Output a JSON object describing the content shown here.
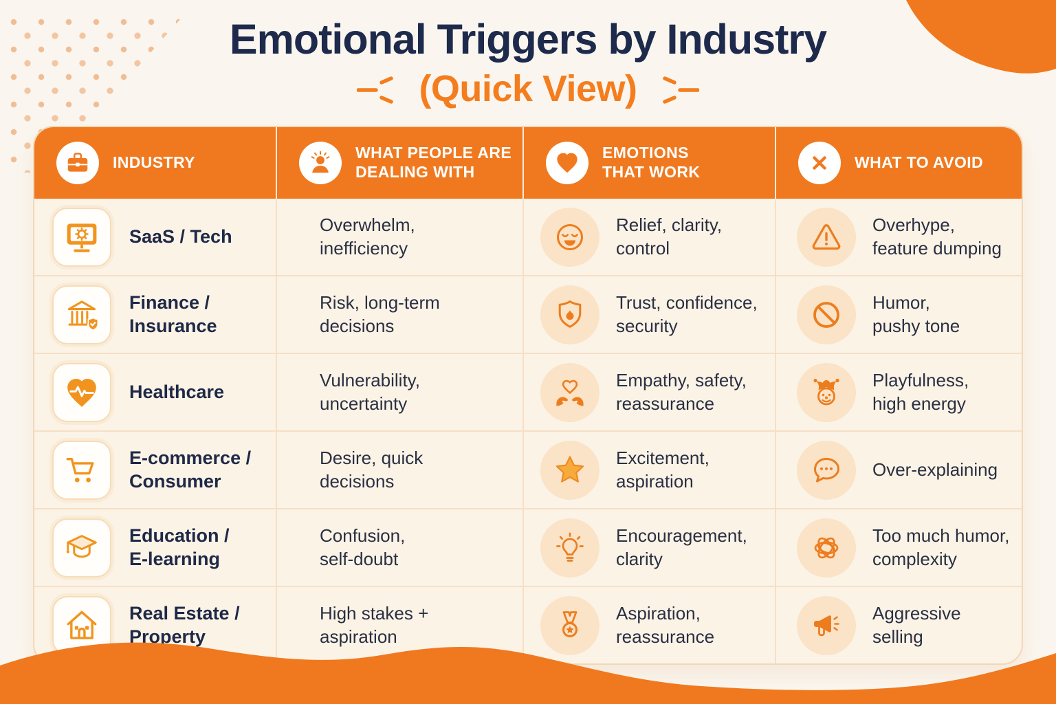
{
  "header": {
    "title": "Emotional Triggers by Industry",
    "subtitle": "(Quick View)"
  },
  "table": {
    "columns": [
      {
        "label": "INDUSTRY",
        "icon": "briefcase-icon"
      },
      {
        "label": "WHAT PEOPLE ARE\nDEALING WITH",
        "icon": "stressed-person-icon"
      },
      {
        "label": "EMOTIONS\nTHAT WORK",
        "icon": "heart-icon"
      },
      {
        "label": "WHAT TO AVOID",
        "icon": "x-icon"
      }
    ],
    "rows": [
      {
        "industry": "SaaS / Tech",
        "industry_icon": "monitor-gear-icon",
        "dealing": "Overwhelm,\ninefficiency",
        "emotion": "Relief, clarity,\ncontrol",
        "emotion_icon": "relieved-face-icon",
        "avoid": "Overhype,\nfeature dumping",
        "avoid_icon": "warning-triangle-icon"
      },
      {
        "industry": "Finance /\nInsurance",
        "industry_icon": "bank-shield-icon",
        "dealing": "Risk, long-term\ndecisions",
        "emotion": "Trust, confidence,\nsecurity",
        "emotion_icon": "shield-icon",
        "avoid": "Humor,\npushy tone",
        "avoid_icon": "no-entry-icon"
      },
      {
        "industry": "Healthcare",
        "industry_icon": "heart-pulse-icon",
        "dealing": "Vulnerability,\nuncertainty",
        "emotion": "Empathy, safety,\nreassurance",
        "emotion_icon": "hands-heart-icon",
        "avoid": "Playfulness,\nhigh energy",
        "avoid_icon": "jester-icon"
      },
      {
        "industry": "E-commerce /\nConsumer",
        "industry_icon": "shopping-cart-icon",
        "dealing": "Desire, quick\ndecisions",
        "emotion": "Excitement,\naspiration",
        "emotion_icon": "star-icon",
        "avoid": "Over-explaining",
        "avoid_icon": "speech-dots-icon"
      },
      {
        "industry": "Education /\nE-learning",
        "industry_icon": "graduation-cap-icon",
        "dealing": "Confusion,\nself-doubt",
        "emotion": "Encouragement,\nclarity",
        "emotion_icon": "lightbulb-icon",
        "avoid": "Too much humor,\ncomplexity",
        "avoid_icon": "tangle-icon"
      },
      {
        "industry": "Real Estate /\nProperty",
        "industry_icon": "house-icon",
        "dealing": "High stakes +\naspiration",
        "emotion": "Aspiration,\nreassurance",
        "emotion_icon": "medal-icon",
        "avoid": "Aggressive\nselling",
        "avoid_icon": "megaphone-icon"
      }
    ]
  },
  "colors": {
    "accent_orange": "#F0791F",
    "title_navy": "#1D2A4C",
    "page_background": "#FAF6EF",
    "cell_cream": "#FCF3E7",
    "peach_circle": "#FAE3C6",
    "divider": "#F6DFC5"
  },
  "chart_data": {
    "type": "table",
    "title": "Emotional Triggers by Industry (Quick View)",
    "columns": [
      "Industry",
      "What People Are Dealing With",
      "Emotions That Work",
      "What To Avoid"
    ],
    "rows": [
      [
        "SaaS / Tech",
        "Overwhelm, inefficiency",
        "Relief, clarity, control",
        "Overhype, feature dumping"
      ],
      [
        "Finance / Insurance",
        "Risk, long-term decisions",
        "Trust, confidence, security",
        "Humor, pushy tone"
      ],
      [
        "Healthcare",
        "Vulnerability, uncertainty",
        "Empathy, safety, reassurance",
        "Playfulness, high energy"
      ],
      [
        "E-commerce / Consumer",
        "Desire, quick decisions",
        "Excitement, aspiration",
        "Over-explaining"
      ],
      [
        "Education / E-learning",
        "Confusion, self-doubt",
        "Encouragement, clarity",
        "Too much humor, complexity"
      ],
      [
        "Real Estate / Property",
        "High stakes + aspiration",
        "Aspiration, reassurance",
        "Aggressive selling"
      ]
    ],
    "legend_position": "none",
    "grid": true
  }
}
